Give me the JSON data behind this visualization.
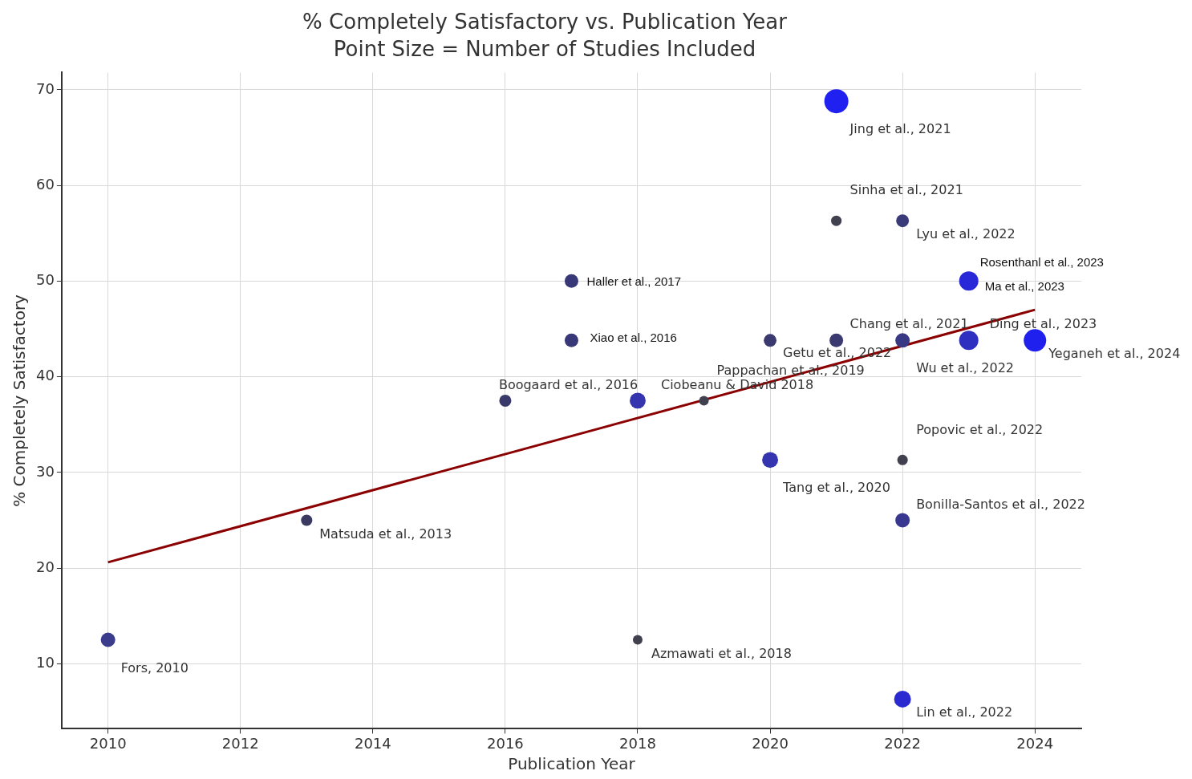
{
  "chart_data": {
    "type": "bubble",
    "title": "% Completely Satisfactory vs. Publication Year",
    "subtitle": "Point Size = Number of Studies Included",
    "xlabel": "Publication Year",
    "ylabel": "% Completely Satisfactory",
    "xlim": [
      2009.3,
      2024.7
    ],
    "xticks": [
      2010,
      2012,
      2014,
      2016,
      2018,
      2020,
      2022,
      2024
    ],
    "ylim": [
      3.2,
      71.8
    ],
    "yticks": [
      10,
      20,
      30,
      40,
      50,
      60,
      70
    ],
    "grid": true,
    "legend": false,
    "series": [
      {
        "x": [
          2010,
          2013,
          2016,
          2017,
          2017,
          2018,
          2018,
          2019,
          2020,
          2020,
          2021,
          2021,
          2021,
          2022,
          2022,
          2022,
          2022,
          2022,
          2023,
          2023,
          2024
        ],
        "values": [
          12.5,
          25,
          37.5,
          43.8,
          50,
          37.5,
          12.5,
          37.5,
          43.8,
          31.3,
          68.8,
          56.3,
          43.8,
          56.3,
          43.8,
          31.3,
          25,
          6.3,
          50,
          43.8,
          43.8
        ],
        "sizes": [
          0.36,
          0.22,
          0.25,
          0.32,
          0.32,
          0.44,
          0.16,
          0.16,
          0.28,
          0.44,
          1,
          0.19,
          0.32,
          0.28,
          0.36,
          0.19,
          0.36,
          0.49,
          0.64,
          0.64,
          0.87
        ],
        "colors": [
          "#3c3c8c",
          "#3a3a60",
          "#3a3a6a",
          "#383878",
          "#383878",
          "#3535b0",
          "#40404f",
          "#40404f",
          "#3a3a70",
          "#3535b0",
          "#2020f0",
          "#40404f",
          "#3a3a70",
          "#3a3a78",
          "#383884",
          "#40404f",
          "#383890",
          "#2a2ad0",
          "#2828d8",
          "#3030c0",
          "#1f1fee"
        ]
      },
      {
        "type": "line",
        "color": "#8b0000",
        "x": [
          2010,
          2024
        ],
        "values": [
          20.6,
          47.0
        ],
        "marker": "none"
      }
    ],
    "annotations": [
      {
        "text": "Jing et al., 2021",
        "x": 2021,
        "y": 68.8
      },
      {
        "text": "Sinha et al., 2021",
        "x": 2021,
        "y": 56.3
      },
      {
        "text": "Lyu et al., 2022",
        "x": 2022,
        "y": 56.3
      },
      {
        "text": "Rosenthanl et al., 2023",
        "x": 2023,
        "y": 50
      },
      {
        "text": "Ma et al., 2023",
        "x": 2023,
        "y": 50
      },
      {
        "text": "Haller et al., 2017",
        "x": 2017,
        "y": 50
      },
      {
        "text": "Xiao et al., 2016",
        "x": 2017,
        "y": 43.8
      },
      {
        "text": "Chang et al., 2021",
        "x": 2021,
        "y": 43.8
      },
      {
        "text": "Ding et al., 2023",
        "x": 2023,
        "y": 43.8
      },
      {
        "text": "Getu et al., 2022",
        "x": 2020,
        "y": 43.8
      },
      {
        "text": "Yeganeh et al., 2024",
        "x": 2024,
        "y": 43.8
      },
      {
        "text": "Wu et al., 2022",
        "x": 2022,
        "y": 43.8
      },
      {
        "text": "Pappachan et al., 2019",
        "x": 2019,
        "y": 37.5
      },
      {
        "text": "Boogaard et al., 2016",
        "x": 2016,
        "y": 37.5
      },
      {
        "text": "Ciobeanu & David 2018",
        "x": 2018,
        "y": 37.5
      },
      {
        "text": "Popovic et al., 2022",
        "x": 2022,
        "y": 31.3
      },
      {
        "text": "Tang et al., 2020",
        "x": 2020,
        "y": 31.3
      },
      {
        "text": "Bonilla-Santos et al., 2022",
        "x": 2022,
        "y": 25
      },
      {
        "text": "Matsuda et al., 2013",
        "x": 2013,
        "y": 25
      },
      {
        "text": "Fors, 2010",
        "x": 2010,
        "y": 12.5
      },
      {
        "text": "Azmawati et al., 2018",
        "x": 2018,
        "y": 12.5
      },
      {
        "text": "Lin et al., 2022",
        "x": 2022,
        "y": 6.3
      }
    ]
  }
}
